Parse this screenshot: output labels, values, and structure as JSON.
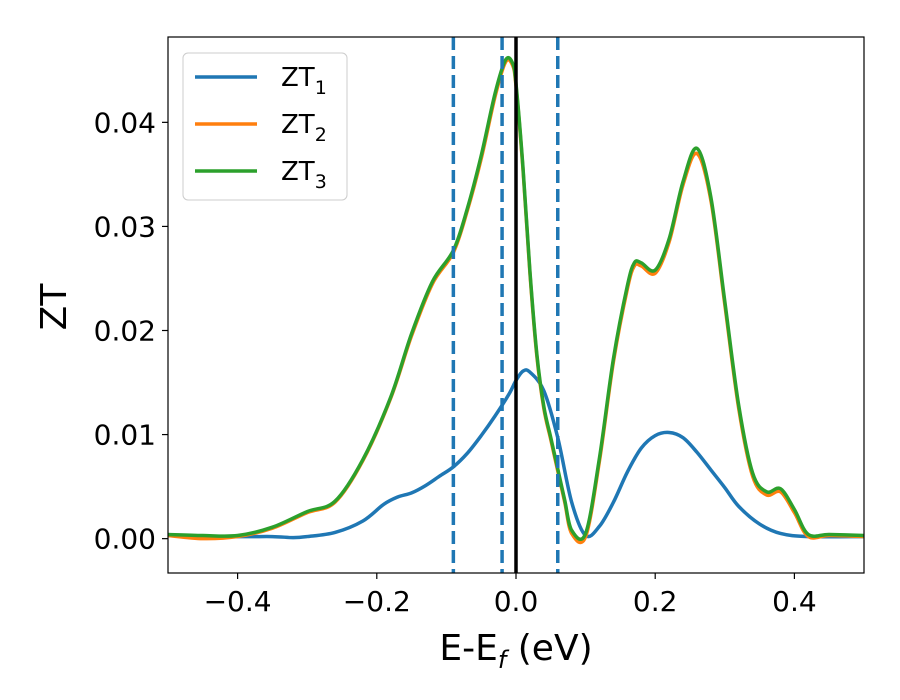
{
  "chart_data": {
    "type": "line",
    "xlabel": "E-E",
    "xlabel_sub": "f",
    "xlabel_unit": " (eV)",
    "ylabel": "ZT",
    "xlim": [
      -0.5,
      0.5
    ],
    "ylim": [
      -0.0033,
      0.0482
    ],
    "xticks": [
      -0.4,
      -0.2,
      0.0,
      0.2,
      0.4
    ],
    "xtick_labels": [
      "−0.4",
      "−0.2",
      "0.0",
      "0.2",
      "0.4"
    ],
    "yticks": [
      0.0,
      0.01,
      0.02,
      0.03,
      0.04
    ],
    "ytick_labels": [
      "0.00",
      "0.01",
      "0.02",
      "0.03",
      "0.04"
    ],
    "grid": false,
    "legend_position": "top-left",
    "vlines": [
      {
        "x": -0.09,
        "style": "dashed",
        "color": "#1f77b4"
      },
      {
        "x": -0.02,
        "style": "dashed",
        "color": "#1f77b4"
      },
      {
        "x": 0.06,
        "style": "dashed",
        "color": "#1f77b4"
      },
      {
        "x": 0.0,
        "style": "solid",
        "color": "#000000"
      }
    ],
    "series": [
      {
        "name": "ZT",
        "name_sub": "1",
        "color": "#1f77b4",
        "x": [
          -0.5,
          -0.4,
          -0.35,
          -0.32,
          -0.3,
          -0.26,
          -0.22,
          -0.19,
          -0.17,
          -0.15,
          -0.13,
          -0.11,
          -0.09,
          -0.07,
          -0.05,
          -0.03,
          -0.01,
          0.0,
          0.01,
          0.02,
          0.04,
          0.06,
          0.08,
          0.1,
          0.12,
          0.14,
          0.16,
          0.18,
          0.2,
          0.22,
          0.24,
          0.26,
          0.28,
          0.3,
          0.32,
          0.35,
          0.38,
          0.42,
          0.5
        ],
        "y": [
          0.0003,
          0.0002,
          0.0002,
          0.0001,
          0.0002,
          0.0006,
          0.0017,
          0.0033,
          0.004,
          0.0044,
          0.0051,
          0.006,
          0.0069,
          0.0082,
          0.0099,
          0.0118,
          0.0139,
          0.0152,
          0.0161,
          0.016,
          0.0142,
          0.0097,
          0.0035,
          0.0003,
          0.0012,
          0.0035,
          0.0064,
          0.0087,
          0.0099,
          0.0102,
          0.0097,
          0.0083,
          0.0066,
          0.0049,
          0.0031,
          0.0014,
          0.0005,
          0.0002,
          0.0002
        ]
      },
      {
        "name": "ZT",
        "name_sub": "2",
        "color": "#ff7f0e",
        "x": [
          -0.5,
          -0.45,
          -0.4,
          -0.35,
          -0.3,
          -0.26,
          -0.22,
          -0.18,
          -0.15,
          -0.12,
          -0.09,
          -0.07,
          -0.05,
          -0.03,
          -0.015,
          -0.005,
          0.0,
          0.01,
          0.02,
          0.03,
          0.04,
          0.05,
          0.06,
          0.07,
          0.08,
          0.1,
          0.12,
          0.14,
          0.16,
          0.17,
          0.18,
          0.2,
          0.22,
          0.24,
          0.26,
          0.28,
          0.3,
          0.32,
          0.34,
          0.36,
          0.38,
          0.4,
          0.42,
          0.45,
          0.5
        ],
        "y": [
          0.0003,
          0.0,
          0.0002,
          0.001,
          0.0025,
          0.0035,
          0.0075,
          0.0135,
          0.0195,
          0.0245,
          0.0275,
          0.0315,
          0.0365,
          0.0425,
          0.0458,
          0.0455,
          0.0435,
          0.0355,
          0.0255,
          0.0175,
          0.0125,
          0.0095,
          0.0065,
          0.0035,
          0.0005,
          0.0002,
          0.0075,
          0.017,
          0.024,
          0.0262,
          0.0262,
          0.0255,
          0.0285,
          0.034,
          0.037,
          0.0325,
          0.0225,
          0.0125,
          0.006,
          0.0042,
          0.0045,
          0.0025,
          0.0002,
          0.0003,
          0.0002
        ]
      },
      {
        "name": "ZT",
        "name_sub": "3",
        "color": "#2ca02c",
        "x": [
          -0.5,
          -0.45,
          -0.4,
          -0.35,
          -0.3,
          -0.26,
          -0.22,
          -0.18,
          -0.15,
          -0.12,
          -0.09,
          -0.07,
          -0.05,
          -0.03,
          -0.015,
          -0.005,
          0.0,
          0.01,
          0.02,
          0.03,
          0.04,
          0.05,
          0.06,
          0.07,
          0.08,
          0.1,
          0.12,
          0.14,
          0.16,
          0.17,
          0.18,
          0.2,
          0.22,
          0.24,
          0.26,
          0.28,
          0.3,
          0.32,
          0.34,
          0.36,
          0.38,
          0.4,
          0.42,
          0.45,
          0.5
        ],
        "y": [
          0.0004,
          0.0003,
          0.0003,
          0.0011,
          0.0026,
          0.0036,
          0.0076,
          0.0136,
          0.0197,
          0.0247,
          0.0277,
          0.0317,
          0.0368,
          0.0428,
          0.046,
          0.0457,
          0.0437,
          0.0357,
          0.0257,
          0.0177,
          0.0127,
          0.0097,
          0.0067,
          0.0037,
          0.0008,
          0.0005,
          0.0078,
          0.0173,
          0.0243,
          0.0265,
          0.0265,
          0.0258,
          0.0288,
          0.0343,
          0.0375,
          0.0328,
          0.0228,
          0.0128,
          0.0063,
          0.0045,
          0.0048,
          0.0028,
          0.0004,
          0.0004,
          0.0003
        ]
      }
    ]
  }
}
